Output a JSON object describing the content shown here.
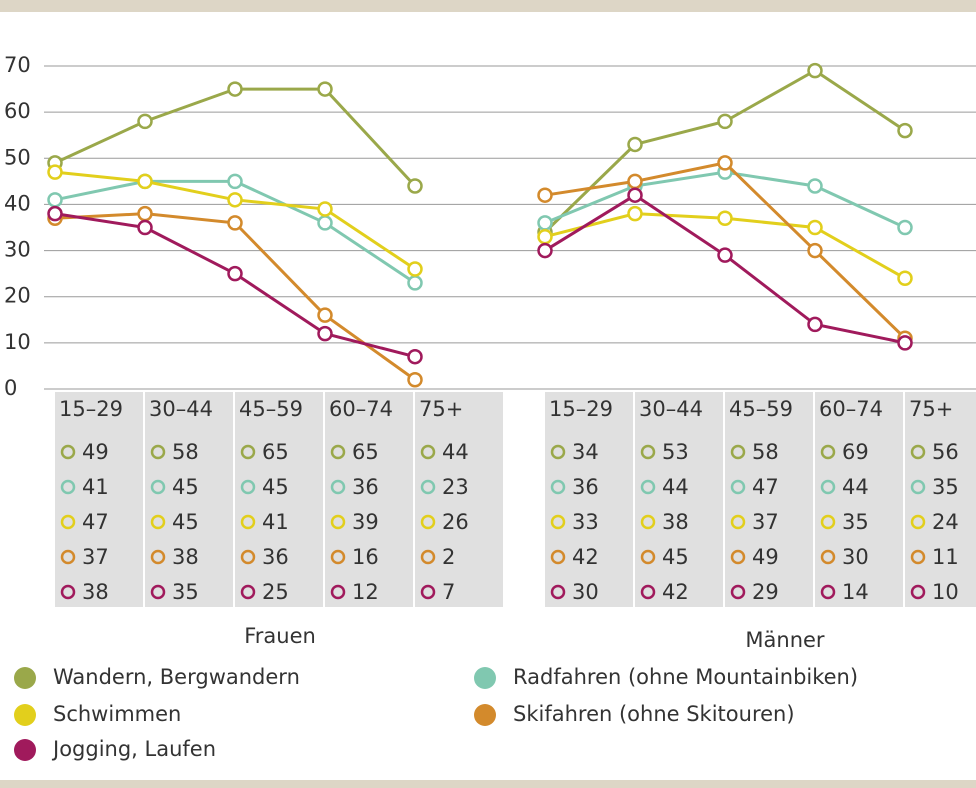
{
  "chart_data": {
    "type": "line",
    "ylim": [
      0,
      70
    ],
    "yticks": [
      0,
      10,
      20,
      30,
      40,
      50,
      60,
      70
    ],
    "grid": true,
    "series": [
      {
        "name": "Wandern, Bergwandern",
        "color": "#9aa84a"
      },
      {
        "name": "Radfahren (ohne Mountainbiken)",
        "color": "#80c8b0"
      },
      {
        "name": "Schwimmen",
        "color": "#e2cf1c"
      },
      {
        "name": "Skifahren (ohne Skitouren)",
        "color": "#d38a2c"
      },
      {
        "name": "Jogging, Laufen",
        "color": "#a01a5c"
      }
    ],
    "panels": [
      {
        "title": "Frauen",
        "categories": [
          "15–29",
          "30–44",
          "45–59",
          "60–74",
          "75+"
        ],
        "series": [
          {
            "values": [
              49,
              58,
              65,
              65,
              44
            ]
          },
          {
            "values": [
              41,
              45,
              45,
              36,
              23
            ]
          },
          {
            "values": [
              47,
              45,
              41,
              39,
              26
            ]
          },
          {
            "values": [
              37,
              38,
              36,
              16,
              2
            ]
          },
          {
            "values": [
              38,
              35,
              25,
              12,
              7
            ]
          }
        ]
      },
      {
        "title": "Männer",
        "categories": [
          "15–29",
          "30–44",
          "45–59",
          "60–74",
          "75+"
        ],
        "series": [
          {
            "values": [
              34,
              53,
              58,
              69,
              56
            ]
          },
          {
            "values": [
              36,
              44,
              47,
              44,
              35
            ]
          },
          {
            "values": [
              33,
              38,
              37,
              35,
              24
            ]
          },
          {
            "values": [
              42,
              45,
              49,
              30,
              11
            ]
          },
          {
            "values": [
              30,
              42,
              29,
              14,
              10
            ]
          }
        ]
      }
    ]
  }
}
